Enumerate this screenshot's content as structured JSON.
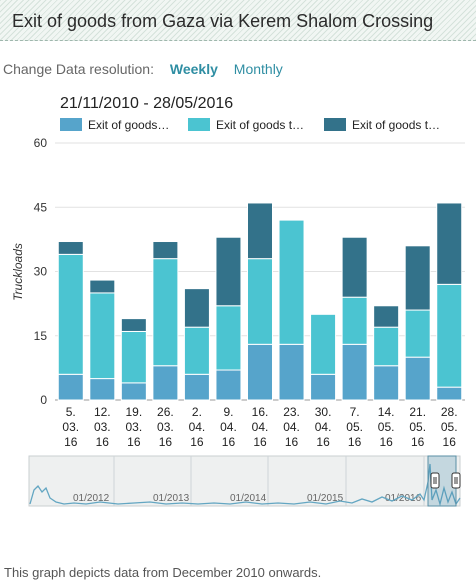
{
  "header": {
    "title": "Exit of goods from Gaza via Kerem Shalom Crossing"
  },
  "resolution": {
    "label": "Change Data resolution:",
    "options": [
      "Weekly",
      "Monthly"
    ],
    "selected": "Weekly"
  },
  "date_range": "21/11/2010 - 28/05/2016",
  "legend": [
    {
      "label": "Exit of goods…",
      "color": "#56a4cb"
    },
    {
      "label": "Exit of goods t…",
      "color": "#4bc4d1"
    },
    {
      "label": "Exit of goods t…",
      "color": "#33728a"
    }
  ],
  "chart_data": {
    "type": "bar",
    "stacked": true,
    "ylabel": "Truckloads",
    "ylim": [
      0,
      60
    ],
    "yticks": [
      0,
      15,
      30,
      45,
      60
    ],
    "grid": true,
    "legend_position": "top",
    "categories": [
      [
        "5.",
        "03.",
        "16"
      ],
      [
        "12.",
        "03.",
        "16"
      ],
      [
        "19.",
        "03.",
        "16"
      ],
      [
        "26.",
        "03.",
        "16"
      ],
      [
        "2.",
        "04.",
        "16"
      ],
      [
        "9.",
        "04.",
        "16"
      ],
      [
        "16.",
        "04.",
        "16"
      ],
      [
        "23.",
        "04.",
        "16"
      ],
      [
        "30.",
        "04.",
        "16"
      ],
      [
        "7.",
        "05.",
        "16"
      ],
      [
        "14.",
        "05.",
        "16"
      ],
      [
        "21.",
        "05.",
        "16"
      ],
      [
        "28.",
        "05.",
        "16"
      ]
    ],
    "series": [
      {
        "name": "Exit of goods…",
        "color": "#56a4cb",
        "values": [
          6,
          5,
          4,
          8,
          6,
          7,
          13,
          13,
          6,
          13,
          8,
          10,
          3
        ]
      },
      {
        "name": "Exit of goods t…",
        "color": "#4bc4d1",
        "values": [
          28,
          20,
          12,
          25,
          11,
          15,
          20,
          29,
          14,
          11,
          9,
          11,
          24
        ]
      },
      {
        "name": "Exit of goods t…",
        "color": "#33728a",
        "values": [
          3,
          3,
          3,
          4,
          9,
          16,
          13,
          0,
          0,
          14,
          5,
          15,
          19
        ]
      }
    ]
  },
  "navigator": {
    "labels": [
      "01/2012",
      "01/2013",
      "01/2014",
      "01/2015",
      "01/2016"
    ]
  },
  "footer": {
    "note": "This graph depicts data from December 2010 onwards."
  }
}
